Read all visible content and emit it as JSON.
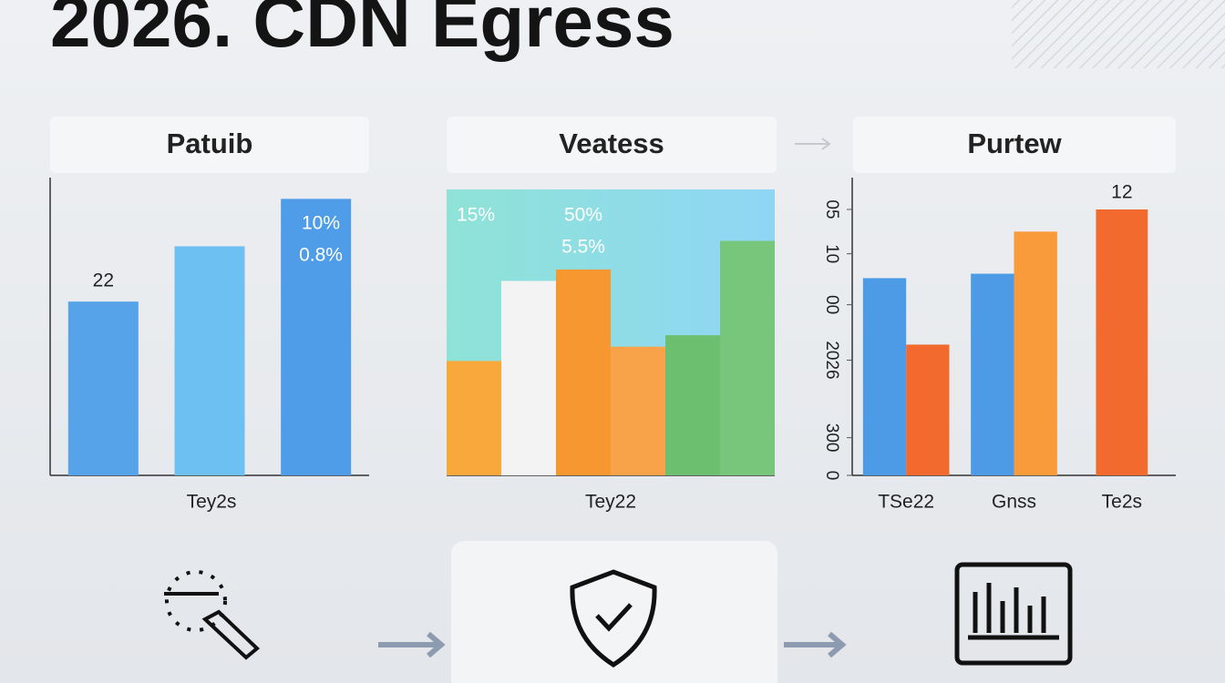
{
  "title": "2026. CDN Egress",
  "chart_data": [
    {
      "type": "bar",
      "title": "Patuib",
      "categories": [
        null,
        null,
        null
      ],
      "values": [
        22,
        29,
        35
      ],
      "value_labels": [
        "22",
        null,
        null
      ],
      "colors": [
        "#56a3ea",
        "#6dc0f2",
        "#4f9de8"
      ],
      "ylim": [
        0,
        40
      ],
      "annotations": [
        "10%",
        "0.8%"
      ],
      "xlabel": "Tey2s"
    },
    {
      "type": "bar",
      "title": "Veatess",
      "categories": [
        null,
        null,
        null,
        null,
        null,
        null
      ],
      "values": [
        40,
        68,
        72,
        45,
        49,
        82
      ],
      "colors": [
        "#f9a83b",
        "#f3f3f3",
        "#f7972f",
        "#f8a24a",
        "#6cbf6f",
        "#78c67c"
      ],
      "ylim": [
        0,
        100
      ],
      "annotations": [
        "15%",
        "50%",
        "5.5%"
      ],
      "xlabel": "Tey22"
    },
    {
      "type": "grouped-bar",
      "title": "Purtew",
      "categories": [
        "TSe22",
        "Gnss",
        "Te2s"
      ],
      "series": [
        {
          "color": "#4d9ae6",
          "values": [
            8.9,
            9.1,
            null
          ]
        },
        {
          "color": "#f26a2e",
          "values": [
            5.9,
            null,
            12
          ],
          "value_labels": [
            null,
            null,
            "12"
          ]
        },
        {
          "color": "#f99b3a",
          "values": [
            null,
            11,
            null
          ]
        }
      ],
      "ylim": [
        0,
        12
      ],
      "yticks": [
        {
          "value": 12,
          "label": "05"
        },
        {
          "value": 10,
          "label": "10"
        },
        {
          "value": 7.7,
          "label": "00"
        },
        {
          "value": 5.2,
          "label": "2026"
        },
        {
          "value": 1.7,
          "label": "300"
        },
        0
      ]
    }
  ]
}
